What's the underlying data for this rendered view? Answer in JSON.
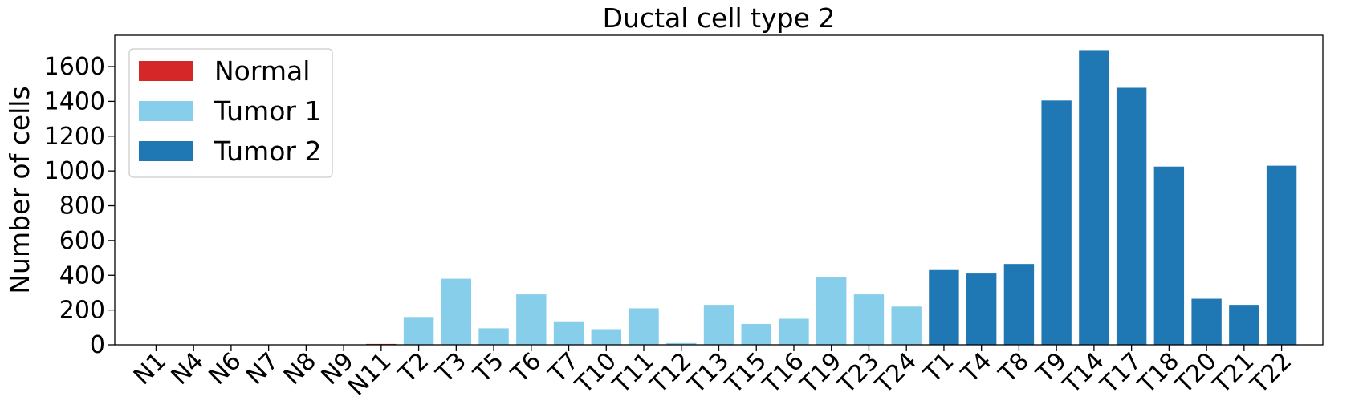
{
  "chart_data": {
    "type": "bar",
    "title": "Ductal cell type 2",
    "xlabel": "",
    "ylabel": "Number of cells",
    "ylim": [
      0,
      1780
    ],
    "yticks": [
      0,
      200,
      400,
      600,
      800,
      1000,
      1200,
      1400,
      1600
    ],
    "grid": false,
    "legend_position": "top-left",
    "series": [
      {
        "name": "Normal",
        "color": "#d62728",
        "categories": [
          "N1",
          "N4",
          "N6",
          "N7",
          "N8",
          "N9",
          "N11"
        ],
        "values": [
          0,
          0,
          0,
          0,
          0,
          0,
          5
        ]
      },
      {
        "name": "Tumor 1",
        "color": "#87ceeb",
        "categories": [
          "T2",
          "T3",
          "T5",
          "T6",
          "T7",
          "T10",
          "T11",
          "T12",
          "T13",
          "T15",
          "T16",
          "T19",
          "T23",
          "T24"
        ],
        "values": [
          160,
          380,
          95,
          290,
          135,
          90,
          210,
          10,
          230,
          120,
          150,
          390,
          290,
          220
        ]
      },
      {
        "name": "Tumor 2",
        "color": "#1f77b4",
        "categories": [
          "T1",
          "T4",
          "T8",
          "T9",
          "T14",
          "T17",
          "T18",
          "T20",
          "T21",
          "T22"
        ],
        "values": [
          430,
          410,
          465,
          1405,
          1695,
          1478,
          1025,
          265,
          230,
          1030
        ]
      }
    ]
  }
}
